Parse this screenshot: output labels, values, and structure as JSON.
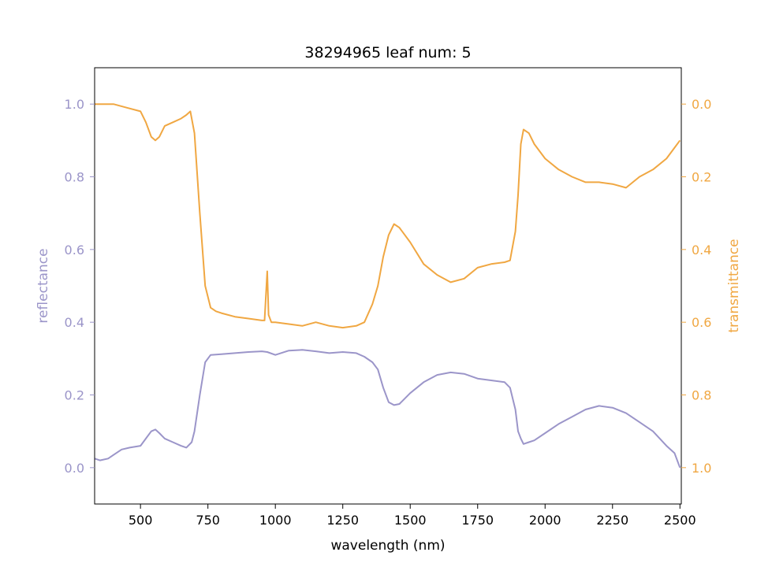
{
  "chart_data": {
    "type": "line",
    "title": "38294965 leaf num: 5",
    "xlabel": "wavelength (nm)",
    "ylabel_left": "reflectance",
    "ylabel_right": "transmittance",
    "xlim": [
      330,
      2505
    ],
    "ylim_left": [
      -0.1,
      1.1
    ],
    "ylim_right": [
      1.1,
      -0.1
    ],
    "right_axis_inverted": true,
    "grid": false,
    "x_ticks": [
      500,
      750,
      1000,
      1250,
      1500,
      1750,
      2000,
      2250,
      2500
    ],
    "y_ticks_left": [
      0.0,
      0.2,
      0.4,
      0.6,
      0.8,
      1.0
    ],
    "y_ticks_right": [
      0.0,
      0.2,
      0.4,
      0.6,
      0.8,
      1.0
    ],
    "colors": {
      "reflectance": "#9b95c9",
      "transmittance": "#f0a742"
    },
    "series": [
      {
        "axis": "left",
        "x": [
          330,
          350,
          380,
          400,
          430,
          460,
          500,
          520,
          540,
          555,
          570,
          590,
          620,
          650,
          670,
          690,
          700,
          720,
          740,
          760,
          800,
          850,
          900,
          950,
          970,
          1000,
          1050,
          1100,
          1150,
          1200,
          1250,
          1300,
          1330,
          1360,
          1380,
          1400,
          1420,
          1440,
          1460,
          1500,
          1550,
          1600,
          1650,
          1700,
          1750,
          1800,
          1850,
          1870,
          1890,
          1900,
          1910,
          1920,
          1940,
          1960,
          2000,
          2050,
          2100,
          2150,
          2200,
          2250,
          2300,
          2350,
          2400,
          2450,
          2480,
          2500
        ],
        "y": [
          0.025,
          0.02,
          0.025,
          0.035,
          0.05,
          0.055,
          0.06,
          0.08,
          0.1,
          0.105,
          0.095,
          0.08,
          0.07,
          0.06,
          0.055,
          0.07,
          0.1,
          0.2,
          0.29,
          0.31,
          0.312,
          0.315,
          0.318,
          0.32,
          0.318,
          0.31,
          0.322,
          0.324,
          0.32,
          0.315,
          0.318,
          0.315,
          0.305,
          0.29,
          0.27,
          0.22,
          0.18,
          0.172,
          0.175,
          0.205,
          0.235,
          0.255,
          0.262,
          0.258,
          0.245,
          0.24,
          0.235,
          0.22,
          0.16,
          0.1,
          0.08,
          0.065,
          0.07,
          0.075,
          0.095,
          0.12,
          0.14,
          0.16,
          0.17,
          0.165,
          0.15,
          0.125,
          0.1,
          0.06,
          0.04,
          0.0
        ]
      },
      {
        "axis": "right",
        "x": [
          330,
          350,
          400,
          450,
          500,
          520,
          540,
          555,
          570,
          590,
          620,
          650,
          670,
          685,
          700,
          720,
          740,
          760,
          780,
          800,
          850,
          900,
          950,
          960,
          970,
          975,
          985,
          1000,
          1050,
          1100,
          1150,
          1200,
          1250,
          1300,
          1330,
          1360,
          1380,
          1400,
          1420,
          1440,
          1460,
          1500,
          1550,
          1600,
          1650,
          1700,
          1750,
          1800,
          1850,
          1870,
          1890,
          1900,
          1910,
          1920,
          1940,
          1960,
          2000,
          2050,
          2100,
          2150,
          2200,
          2250,
          2300,
          2350,
          2400,
          2450,
          2480,
          2500
        ],
        "y": [
          0.0,
          0.0,
          0.0,
          0.01,
          0.02,
          0.05,
          0.09,
          0.1,
          0.09,
          0.06,
          0.05,
          0.04,
          0.03,
          0.02,
          0.08,
          0.3,
          0.5,
          0.56,
          0.57,
          0.575,
          0.585,
          0.59,
          0.595,
          0.595,
          0.46,
          0.58,
          0.6,
          0.6,
          0.605,
          0.61,
          0.6,
          0.61,
          0.615,
          0.61,
          0.6,
          0.55,
          0.5,
          0.42,
          0.36,
          0.33,
          0.34,
          0.38,
          0.44,
          0.47,
          0.49,
          0.48,
          0.45,
          0.44,
          0.435,
          0.43,
          0.35,
          0.25,
          0.11,
          0.07,
          0.08,
          0.11,
          0.15,
          0.18,
          0.2,
          0.215,
          0.215,
          0.22,
          0.23,
          0.2,
          0.18,
          0.15,
          0.12,
          0.1
        ]
      }
    ]
  }
}
